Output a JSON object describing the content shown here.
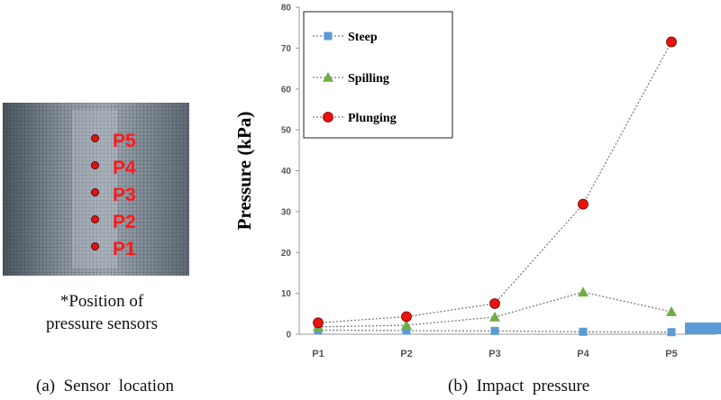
{
  "panel_a": {
    "sensors": [
      "P5",
      "P4",
      "P3",
      "P2",
      "P1"
    ],
    "note_line1": "*Position of",
    "note_line2": "pressure sensors",
    "caption": "(a)  Sensor  location"
  },
  "panel_b": {
    "caption": "(b)  Impact  pressure"
  },
  "chart_data": {
    "type": "line",
    "title": "",
    "xlabel": "",
    "ylabel": "Pressure (kPa)",
    "categories": [
      "P1",
      "P2",
      "P3",
      "P4",
      "P5"
    ],
    "ylim": [
      0,
      80
    ],
    "yticks": [
      0,
      10,
      20,
      30,
      40,
      50,
      60,
      70,
      80
    ],
    "grid": false,
    "legend": "top-left",
    "series": [
      {
        "name": "Steep",
        "marker": "square",
        "color": "#5b9bd5",
        "values": [
          1.0,
          0.9,
          0.8,
          0.6,
          0.5
        ]
      },
      {
        "name": "Spilling",
        "marker": "triangle",
        "color": "#70ad47",
        "values": [
          1.8,
          2.2,
          4.2,
          10.3,
          5.5
        ]
      },
      {
        "name": "Plunging",
        "marker": "circle",
        "color": "#e8140c",
        "values": [
          2.8,
          4.3,
          7.5,
          31.8,
          71.5
        ]
      }
    ]
  }
}
